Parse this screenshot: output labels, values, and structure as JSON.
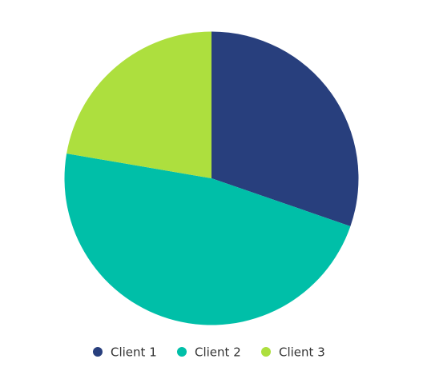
{
  "chart_data": {
    "type": "pie",
    "title": "",
    "series": [
      {
        "name": "",
        "slices": [
          {
            "label": "Client 1",
            "value": 30.3,
            "color": "#283f7d"
          },
          {
            "label": "Client 2",
            "value": 47.4,
            "color": "#00bfa8"
          },
          {
            "label": "Client 3",
            "value": 22.3,
            "color": "#addf3e"
          }
        ]
      }
    ],
    "start_angle_deg": 0,
    "direction": "clockwise",
    "legend": {
      "position": "bottom"
    }
  }
}
